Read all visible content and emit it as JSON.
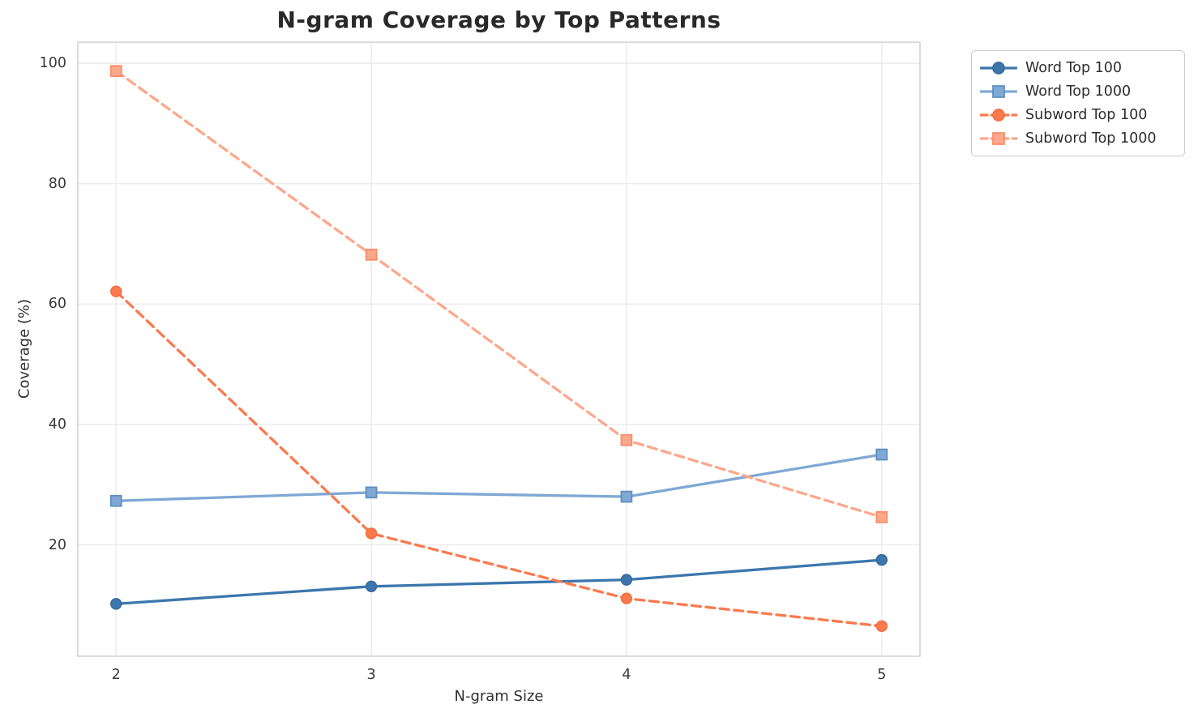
{
  "chart_data": {
    "type": "line",
    "title": "N-gram Coverage by Top Patterns",
    "xlabel": "N-gram Size",
    "ylabel": "Coverage (%)",
    "x": [
      2,
      3,
      4,
      5
    ],
    "xtick_labels": [
      "2",
      "3",
      "4",
      "5"
    ],
    "ytick_values": [
      20,
      40,
      60,
      80,
      100
    ],
    "ytick_labels": [
      "20",
      "40",
      "60",
      "80",
      "100"
    ],
    "xlim": [
      1.85,
      5.15
    ],
    "ylim": [
      1.5,
      103.5
    ],
    "grid": true,
    "legend_position": "upper-right-outside",
    "colors": {
      "grid": "#eaeaea",
      "spine": "#cdcdcd",
      "title_text": "#292929",
      "tick_text": "#3a3a3a"
    },
    "series": [
      {
        "name": "Word Top 100",
        "values": [
          10.2,
          13.1,
          14.2,
          17.5
        ],
        "color": "#3c76ad",
        "marker_edge": "#35699c",
        "marker": "circle",
        "line_style": "solid"
      },
      {
        "name": "Word Top 1000",
        "values": [
          27.3,
          28.7,
          28.0,
          35.0
        ],
        "color": "#7fa8d4",
        "marker_edge": "#5c8dc0",
        "marker": "square",
        "line_style": "solid"
      },
      {
        "name": "Subword Top 100",
        "values": [
          62.1,
          21.9,
          11.1,
          6.5
        ],
        "color": "#fb7a4d",
        "marker_edge": "#f56b3c",
        "marker": "circle",
        "line_style": "dashed"
      },
      {
        "name": "Subword Top 1000",
        "values": [
          98.7,
          68.2,
          37.4,
          24.6
        ],
        "color": "#fda78b",
        "marker_edge": "#fc8a63",
        "marker": "square",
        "line_style": "dashed"
      }
    ]
  }
}
